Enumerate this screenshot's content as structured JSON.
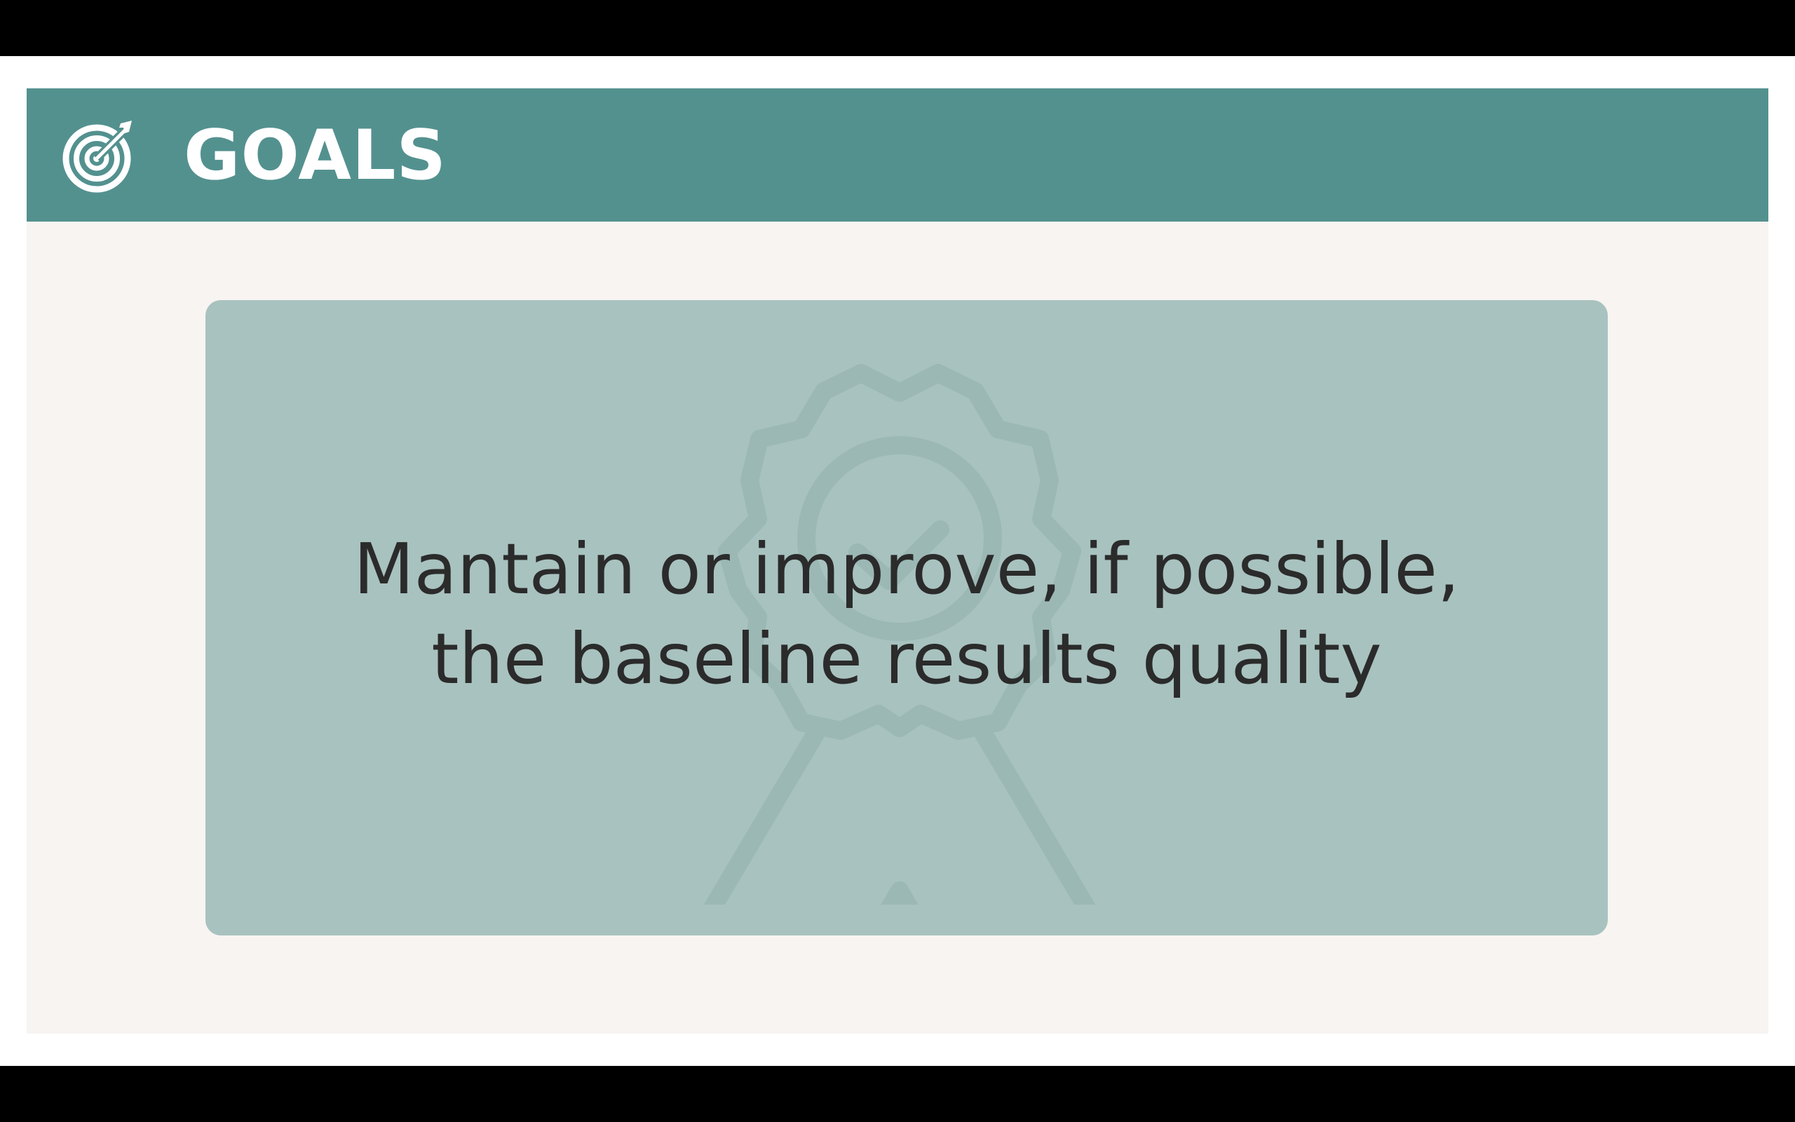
{
  "slide": {
    "title": "GOALS",
    "title_icon": "target-arrow-icon",
    "goal_lines": [
      "Mantain or improve, if possible,",
      "the baseline results quality"
    ],
    "watermark_icon": "award-ribbon-icon"
  },
  "colors": {
    "header": "#53918f",
    "slide_background": "#f8f4f1",
    "card": "#a8c2bf",
    "text": "#2b2b2b",
    "title_text": "#ffffff"
  }
}
